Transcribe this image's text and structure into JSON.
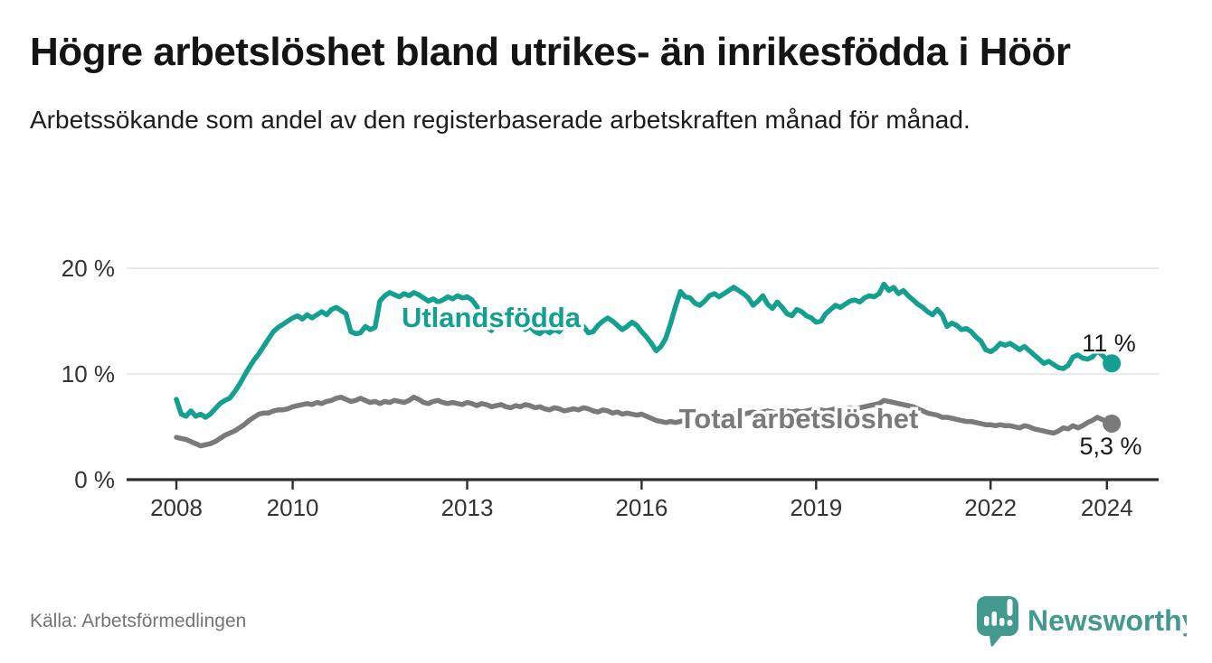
{
  "header": {
    "title": "Högre arbetslöshet bland utrikes- än inrikesfödda i Höör",
    "subtitle": "Arbetssökande som andel av den registerbaserade arbetskraften månad för månad."
  },
  "chart_data": {
    "type": "line",
    "unit": "%",
    "x_start": "2008-01",
    "x_end": "2024-02",
    "x_interval": "monthly",
    "ylim": [
      0,
      21.5
    ],
    "grid": "horizontal",
    "legend_position": "inline-labels",
    "yticks": [
      {
        "value": 0,
        "label": "0 %"
      },
      {
        "value": 10,
        "label": "10 %"
      },
      {
        "value": 20,
        "label": "20 %"
      }
    ],
    "xticks": [
      {
        "value": 2008,
        "label": "2008"
      },
      {
        "value": 2010,
        "label": "2010"
      },
      {
        "value": 2013,
        "label": "2013"
      },
      {
        "value": 2016,
        "label": "2016"
      },
      {
        "value": 2019,
        "label": "2019"
      },
      {
        "value": 2022,
        "label": "2022"
      },
      {
        "value": 2024,
        "label": "2024"
      }
    ],
    "series": [
      {
        "name": "Utlandsfödda",
        "color": "#14a091",
        "end_label": "11 %",
        "end_value": 11.0,
        "values": [
          7.6,
          6.2,
          6.0,
          6.5,
          6.0,
          6.2,
          5.9,
          6.2,
          6.7,
          7.2,
          7.5,
          7.7,
          8.3,
          9.0,
          9.8,
          10.6,
          11.3,
          11.9,
          12.6,
          13.3,
          14.0,
          14.4,
          14.7,
          15.0,
          15.3,
          15.5,
          15.2,
          15.6,
          15.3,
          15.6,
          15.9,
          15.6,
          16.1,
          16.3,
          16.0,
          15.7,
          14.0,
          13.8,
          13.9,
          14.5,
          14.2,
          14.4,
          16.9,
          17.4,
          17.7,
          17.5,
          17.3,
          17.6,
          17.4,
          17.7,
          17.5,
          17.2,
          16.9,
          17.1,
          16.8,
          17.0,
          17.3,
          17.1,
          17.4,
          17.2,
          17.3,
          17.0,
          16.4,
          15.4,
          14.4,
          14.1,
          14.7,
          15.2,
          14.9,
          14.7,
          15.0,
          14.9,
          14.2,
          14.5,
          14.0,
          13.8,
          14.2,
          13.9,
          14.2,
          14.0,
          14.6,
          14.9,
          14.6,
          14.9,
          14.5,
          13.9,
          14.0,
          14.6,
          15.0,
          15.3,
          15.0,
          14.6,
          14.2,
          14.5,
          14.9,
          14.6,
          14.0,
          13.5,
          12.9,
          12.2,
          12.6,
          13.4,
          14.8,
          16.4,
          17.8,
          17.3,
          17.2,
          16.7,
          16.5,
          16.9,
          17.4,
          17.6,
          17.3,
          17.6,
          17.9,
          18.2,
          17.9,
          17.6,
          17.2,
          16.5,
          16.9,
          17.4,
          16.6,
          16.2,
          16.8,
          16.3,
          15.7,
          15.5,
          16.1,
          15.9,
          15.5,
          15.3,
          14.9,
          15.0,
          15.7,
          16.1,
          16.5,
          16.3,
          16.6,
          16.9,
          17.0,
          16.8,
          17.2,
          17.4,
          17.3,
          17.6,
          18.5,
          17.9,
          18.2,
          17.6,
          17.9,
          17.4,
          17.0,
          16.6,
          16.3,
          15.9,
          15.6,
          16.1,
          15.6,
          14.5,
          14.8,
          14.6,
          14.2,
          14.3,
          14.0,
          13.5,
          13.1,
          12.3,
          12.1,
          12.4,
          12.9,
          12.7,
          12.9,
          12.6,
          12.3,
          12.6,
          12.2,
          11.8,
          11.4,
          11.0,
          11.2,
          10.9,
          10.6,
          10.5,
          10.8,
          11.6,
          11.8,
          11.5,
          11.4,
          11.6,
          12.2,
          11.8,
          11.3,
          11.0
        ]
      },
      {
        "name": "Total arbetslöshet",
        "color": "#7a7a7a",
        "end_label": "5,3 %",
        "end_value": 5.3,
        "values": [
          4.0,
          3.9,
          3.8,
          3.6,
          3.4,
          3.2,
          3.3,
          3.4,
          3.6,
          3.9,
          4.2,
          4.4,
          4.6,
          4.9,
          5.2,
          5.6,
          5.9,
          6.2,
          6.3,
          6.3,
          6.5,
          6.6,
          6.6,
          6.7,
          6.9,
          7.0,
          7.1,
          7.2,
          7.1,
          7.3,
          7.2,
          7.4,
          7.5,
          7.7,
          7.8,
          7.6,
          7.4,
          7.5,
          7.7,
          7.5,
          7.3,
          7.4,
          7.2,
          7.4,
          7.3,
          7.5,
          7.4,
          7.3,
          7.5,
          7.8,
          7.6,
          7.3,
          7.2,
          7.4,
          7.5,
          7.3,
          7.2,
          7.3,
          7.2,
          7.1,
          7.3,
          7.2,
          7.0,
          7.2,
          7.1,
          6.9,
          7.0,
          7.1,
          6.9,
          6.8,
          7.0,
          6.9,
          7.1,
          7.0,
          6.8,
          6.9,
          6.7,
          6.6,
          6.8,
          6.7,
          6.5,
          6.6,
          6.7,
          6.6,
          6.8,
          6.7,
          6.5,
          6.4,
          6.6,
          6.5,
          6.3,
          6.4,
          6.2,
          6.3,
          6.2,
          6.1,
          6.2,
          6.0,
          5.8,
          5.6,
          5.5,
          5.4,
          5.5,
          5.4,
          5.5,
          5.6,
          5.7,
          5.8,
          5.9,
          6.0,
          5.9,
          6.1,
          6.0,
          6.2,
          6.1,
          6.2,
          6.3,
          6.2,
          6.3,
          6.4,
          6.3,
          6.4,
          6.5,
          6.4,
          6.3,
          6.4,
          6.5,
          6.4,
          6.5,
          6.4,
          6.5,
          6.6,
          6.5,
          6.6,
          6.5,
          6.6,
          6.7,
          6.6,
          6.7,
          6.8,
          6.7,
          6.8,
          6.9,
          7.0,
          7.1,
          7.2,
          7.5,
          7.4,
          7.3,
          7.2,
          7.1,
          7.0,
          6.9,
          6.7,
          6.5,
          6.3,
          6.2,
          6.1,
          5.9,
          5.9,
          5.8,
          5.7,
          5.6,
          5.5,
          5.5,
          5.4,
          5.3,
          5.2,
          5.2,
          5.1,
          5.2,
          5.1,
          5.1,
          5.0,
          4.9,
          5.1,
          5.0,
          4.8,
          4.7,
          4.6,
          4.5,
          4.4,
          4.6,
          4.9,
          4.8,
          5.1,
          4.9,
          5.1,
          5.4,
          5.6,
          5.9,
          5.7,
          5.5,
          5.3
        ]
      }
    ],
    "colors": {
      "grid": "#e3e3e3",
      "axis": "#2e2e2e",
      "tick_text": "#333333",
      "value_label_text": "#1a1a1a"
    }
  },
  "footer": {
    "source": "Källa: Arbetsförmedlingen",
    "brand": "Newsworthy",
    "brand_color": "#43988f",
    "logo_icon": "speech-bubble-bar-chart-icon"
  }
}
